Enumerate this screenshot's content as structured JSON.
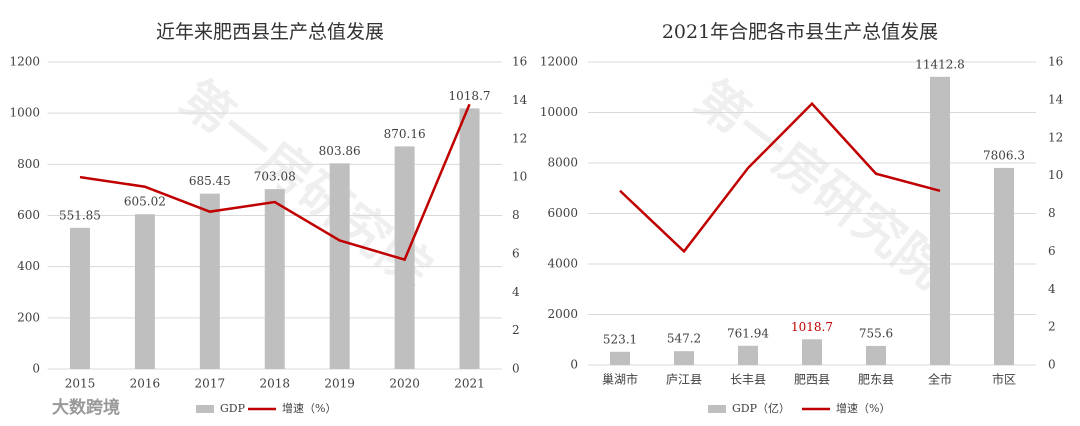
{
  "chart_data": [
    {
      "type": "combo",
      "title": "近年来肥西县生产总值发展",
      "categories": [
        "2015",
        "2016",
        "2017",
        "2018",
        "2019",
        "2020",
        "2021"
      ],
      "series": [
        {
          "name": "GDP",
          "type": "bar",
          "color": "#bfbfbf",
          "values": [
            551.85,
            605.02,
            685.45,
            703.08,
            803.86,
            870.16,
            1018.7
          ]
        },
        {
          "name": "增速（%）",
          "type": "line",
          "axis": "y2",
          "color": "#c00000",
          "values": [
            10.0,
            9.5,
            8.2,
            8.7,
            6.7,
            5.7,
            13.8
          ]
        }
      ],
      "ylim": [
        0,
        1200
      ],
      "yticks": [
        0,
        200,
        400,
        600,
        800,
        1000,
        1200
      ],
      "y2lim": [
        0,
        16
      ],
      "y2ticks": [
        0,
        2,
        4,
        6,
        8,
        10,
        12,
        14,
        16
      ],
      "grid": true
    },
    {
      "type": "combo",
      "title": "2021年合肥各市县生产总值发展",
      "categories": [
        "巢湖市",
        "庐江县",
        "长丰县",
        "肥西县",
        "肥东县",
        "全市",
        "市区"
      ],
      "series": [
        {
          "name": "GDP（亿）",
          "type": "bar",
          "color": "#bfbfbf",
          "values": [
            523.1,
            547.2,
            761.94,
            1018.7,
            755.6,
            11412.8,
            7806.3
          ]
        },
        {
          "name": "增速（%）",
          "type": "line",
          "axis": "y2",
          "color": "#c00000",
          "values": [
            9.2,
            6.0,
            10.4,
            13.8,
            10.1,
            9.2,
            null
          ]
        }
      ],
      "highlight": {
        "index": 3,
        "color": "#c00000"
      },
      "ylim": [
        0,
        12000
      ],
      "yticks": [
        0,
        2000,
        4000,
        6000,
        8000,
        10000,
        12000
      ],
      "y2lim": [
        0,
        16
      ],
      "y2ticks": [
        0,
        2,
        4,
        6,
        8,
        10,
        12,
        14,
        16
      ],
      "grid": true
    }
  ],
  "watermarks": [
    "第一房研究院",
    "大数跨境"
  ]
}
